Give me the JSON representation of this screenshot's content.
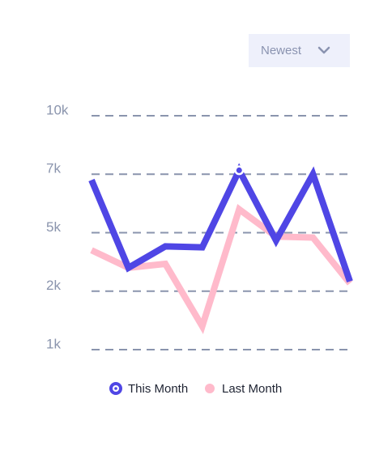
{
  "dropdown": {
    "label": "Newest"
  },
  "chart_data": {
    "type": "line",
    "categories": [
      null,
      null,
      null,
      null,
      null,
      null,
      null,
      null
    ],
    "series": [
      {
        "name": "This Month",
        "color": "#4f46e5",
        "values": [
          6800,
          3200,
          4300,
          4250,
          7200,
          4600,
          7000,
          2500
        ]
      },
      {
        "name": "Last Month",
        "color": "#ffbacb",
        "values": [
          4100,
          3200,
          3400,
          1400,
          5800,
          4800,
          4750,
          2400
        ]
      }
    ],
    "yticks": [
      {
        "value": 10000,
        "label": "10k"
      },
      {
        "value": 7000,
        "label": "7k"
      },
      {
        "value": 5000,
        "label": "5k"
      },
      {
        "value": 2000,
        "label": "2k"
      },
      {
        "value": 1000,
        "label": "1k"
      }
    ],
    "ylim": [
      1000,
      10000
    ],
    "grid": true,
    "legend": "bottom",
    "highlight_index": 4
  }
}
